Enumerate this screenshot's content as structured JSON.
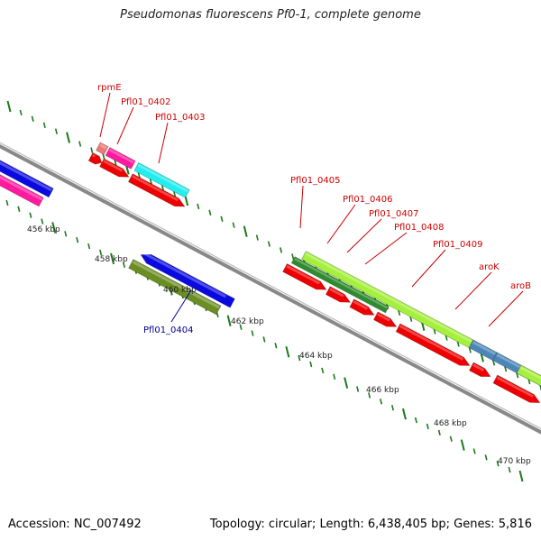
{
  "header": {
    "title": "Pseudomonas fluorescens Pf0-1, complete genome"
  },
  "footer": {
    "accession": "Accession: NC_007492",
    "topology": "Topology: circular; Length: 6,438,405 bp; Genes: 5,816"
  },
  "map": {
    "kbp_labels": [
      "456 kbp",
      "458 kbp",
      "460 kbp",
      "462 kbp",
      "464 kbp",
      "466 kbp",
      "468 kbp",
      "470 kbp"
    ],
    "genes_above": [
      "rpmE",
      "Pfl01_0402",
      "Pfl01_0403",
      "Pfl01_0405",
      "Pfl01_0406",
      "Pfl01_0407",
      "Pfl01_0408",
      "Pfl01_0409",
      "aroK",
      "aroB"
    ],
    "genes_below": [
      "Pfl01_0404"
    ]
  },
  "colors": {
    "label_red": "#cc0000",
    "label_blue": "#000099",
    "cds_red": "#ee0000",
    "blue": "#0a0ae0",
    "magenta": "#ff1aa0",
    "cyan": "#22eeee",
    "olive": "#6b8e23",
    "lime": "#a5f03c",
    "dark_green": "#2e8b2e",
    "steel": "#4a86b8",
    "salmon": "#ee7777",
    "tick_green": "#1a7a1a",
    "backbone_gray": "#888888"
  }
}
